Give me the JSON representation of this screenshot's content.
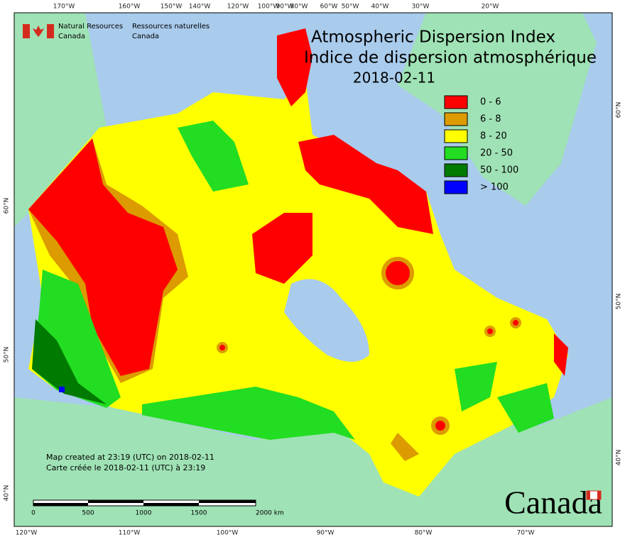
{
  "header": {
    "agency_en": [
      "Natural Resources",
      "Canada"
    ],
    "agency_fr": [
      "Ressources naturelles",
      "Canada"
    ]
  },
  "title": [
    "Atmospheric Dispersion Index",
    "Indice de dispersion atmosphérique",
    "2018-02-11"
  ],
  "legend": [
    {
      "label": "0 - 6",
      "color": "#ff0000"
    },
    {
      "label": "6 - 8",
      "color": "#dc9b00"
    },
    {
      "label": "8 - 20",
      "color": "#ffff00"
    },
    {
      "label": "20 - 50",
      "color": "#22dd22"
    },
    {
      "label": "50 - 100",
      "color": "#007a00"
    },
    {
      "label": "> 100",
      "color": "#0000ff"
    }
  ],
  "top_lon_labels": [
    "170°W",
    "160°W",
    "150°W",
    "140°W",
    "120°W",
    "100°W",
    "90°W",
    "80°W",
    "60°W",
    "50°W",
    "40°W",
    "30°W",
    "20°W"
  ],
  "bottom_lon_labels": [
    "120°W",
    "110°W",
    "100°W",
    "90°W",
    "80°W",
    "70°W"
  ],
  "left_lat_labels": [
    "60°N",
    "50°N",
    "40°N"
  ],
  "right_lat_labels": [
    "60°N",
    "50°N",
    "40°N"
  ],
  "footer": [
    "Map created at 23:19 (UTC) on 2018-02-11",
    "Carte créée le 2018-02-11 (UTC) à 23:19"
  ],
  "scale_bar": [
    "0",
    "500",
    "1000",
    "1500",
    "2000 km"
  ],
  "wordmark": "Canada"
}
